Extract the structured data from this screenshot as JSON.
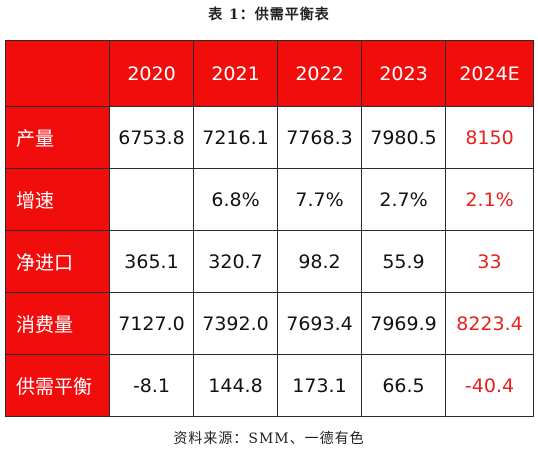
{
  "title": "表 1：供需平衡表",
  "source": "资料来源：SMM、一德有色",
  "colors": {
    "header_bg": "#f20d0d",
    "header_text": "#ffffff",
    "forecast_text": "#e8211b",
    "value_text": "#111111"
  },
  "table": {
    "corner": "",
    "years": [
      "2020",
      "2021",
      "2022",
      "2023",
      "2024E"
    ],
    "rows": [
      {
        "label": "产量",
        "values": [
          "6753.8",
          "7216.1",
          "7768.3",
          "7980.5",
          "8150"
        ]
      },
      {
        "label": "增速",
        "values": [
          "",
          "6.8%",
          "7.7%",
          "2.7%",
          "2.1%"
        ]
      },
      {
        "label": "净进口",
        "values": [
          "365.1",
          "320.7",
          "98.2",
          "55.9",
          "33"
        ]
      },
      {
        "label": "消费量",
        "values": [
          "7127.0",
          "7392.0",
          "7693.4",
          "7969.9",
          "8223.4"
        ]
      },
      {
        "label": "供需平衡",
        "values": [
          "-8.1",
          "144.8",
          "173.1",
          "66.5",
          "-40.4"
        ]
      }
    ]
  }
}
